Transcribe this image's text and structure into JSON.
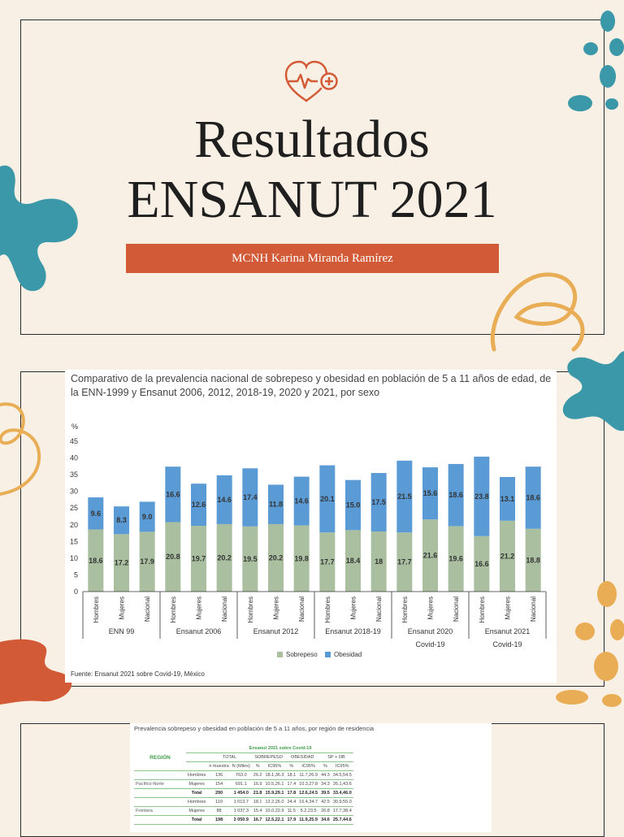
{
  "slide1": {
    "title_line1": "Resultados",
    "title_line2": "ENSANUT 2021",
    "author": "MCNH Karina Miranda Ramírez",
    "icon": "heart-pulse-plus-icon",
    "accent_color": "#d35a36"
  },
  "slide2": {
    "title": "Comparativo de la prevalencia nacional de sobrepeso y obesidad en población de 5 a 11 años de edad, de la ENN-1999 y Ensanut 2006, 2012, 2018-19, 2020 y 2021, por sexo",
    "source": "Fuente: Ensanut 2021 sobre Covid-19, México"
  },
  "chart_data": {
    "type": "bar",
    "stacked": true,
    "title": "Comparativo de la prevalencia nacional de sobrepeso y obesidad en población de 5 a 11 años de edad, de la ENN-1999 y Ensanut 2006, 2012, 2018-19, 2020 y 2021, por sexo",
    "ylabel": "%",
    "ylim": [
      0,
      45
    ],
    "yticks": [
      0,
      5,
      10,
      15,
      20,
      25,
      30,
      35,
      40,
      45
    ],
    "categories": [
      "Hombres",
      "Mujeres",
      "Nacional",
      "Hombres",
      "Mujeres",
      "Nacional",
      "Hombres",
      "Mujeres",
      "Nacional",
      "Hombres",
      "Mujeres",
      "Nacional",
      "Hombres",
      "Mujeres",
      "Nacional",
      "Hombres",
      "Mujeres",
      "Nacional"
    ],
    "groups": [
      {
        "label": "ENN 99",
        "sublabel": ""
      },
      {
        "label": "Ensanut 2006",
        "sublabel": ""
      },
      {
        "label": "Ensanut 2012",
        "sublabel": ""
      },
      {
        "label": "Ensanut 2018-19",
        "sublabel": ""
      },
      {
        "label": "Ensanut 2020",
        "sublabel": "Covid-19"
      },
      {
        "label": "Ensanut 2021",
        "sublabel": "Covid-19"
      }
    ],
    "series": [
      {
        "name": "Sobrepeso",
        "color": "#a9bfa0",
        "values": [
          18.6,
          17.2,
          17.9,
          20.8,
          19.7,
          20.2,
          19.5,
          20.2,
          19.8,
          17.7,
          18.4,
          18,
          17.7,
          21.6,
          19.6,
          16.6,
          21.2,
          18.8
        ],
        "labels": [
          "18.6",
          "17.2",
          "17.9",
          "20.8",
          "19.7",
          "20.2",
          "19.5",
          "20.2",
          "19.8",
          "17.7",
          "18.4",
          "18",
          "17.7",
          "21.6",
          "19.6",
          "16.6",
          "21.2",
          "18.8"
        ]
      },
      {
        "name": "Obesidad",
        "color": "#5b9bd5",
        "values": [
          9.6,
          8.3,
          9.0,
          16.6,
          12.6,
          14.6,
          17.4,
          11.8,
          14.6,
          20.1,
          15.0,
          17.5,
          21.5,
          15.6,
          18.6,
          23.8,
          13.1,
          18.6
        ],
        "labels": [
          "9.6",
          "8.3",
          "9.0",
          "16.6",
          "12.6",
          "14.6",
          "17.4",
          "11.8",
          "14.6",
          "20.1",
          "15.0",
          "17.5",
          "21.5",
          "15.6",
          "18.6",
          "23.8",
          "13.1",
          "18.6"
        ]
      }
    ],
    "legend_position": "bottom-center",
    "grid": false
  },
  "slide3": {
    "table_title": "Prevalencia sobrepeso y obesidad en población de 5 a 11 años, por región de residencia",
    "region_header": "REGIÓN",
    "survey_header": "Ensanut 2021 sobre Covid-19",
    "group_headers": [
      "TOTAL",
      "SOBREPESO",
      "OBESIDAD",
      "SP + OB"
    ],
    "sub_headers": [
      "n muestra",
      "N (Miles)",
      "%",
      "IC95%",
      "%",
      "IC95%",
      "%",
      "IC95%"
    ],
    "rows": [
      {
        "region": "",
        "sex": "Hombres",
        "cells": [
          "136",
          "763.0",
          "26.2",
          "18.1,36.3",
          "18.1",
          "11.7,26.9",
          "44.3",
          "34.5,54.5"
        ],
        "total": false
      },
      {
        "region": "Pacífico-Norte",
        "sex": "Mujeres",
        "cells": [
          "154",
          "691.1",
          "16.9",
          "10.5,26.1",
          "17.4",
          "10.3,27.8",
          "34.3",
          "26.1,43.6"
        ],
        "total": false
      },
      {
        "region": "",
        "sex": "Total",
        "cells": [
          "290",
          "1 454.0",
          "21.8",
          "15.9,29.1",
          "17.8",
          "12.6,24.5",
          "39.5",
          "33.4,46.0"
        ],
        "total": true
      },
      {
        "region": "",
        "sex": "Hombres",
        "cells": [
          "110",
          "1 013.7",
          "18.1",
          "12.2,26.0",
          "24.4",
          "16.4,34.7",
          "42.5",
          "30.9,55.0"
        ],
        "total": false
      },
      {
        "region": "Frontera",
        "sex": "Mujeres",
        "cells": [
          "88",
          "1 037.3",
          "15.4",
          "10.0,22.9",
          "11.5",
          "5.2,23.5",
          "26.8",
          "17.7,38.4"
        ],
        "total": false
      },
      {
        "region": "",
        "sex": "Total",
        "cells": [
          "198",
          "2 050.9",
          "16.7",
          "12.5,22.1",
          "17.9",
          "11.9,25.9",
          "34.6",
          "25.7,44.6"
        ],
        "total": true
      }
    ]
  }
}
